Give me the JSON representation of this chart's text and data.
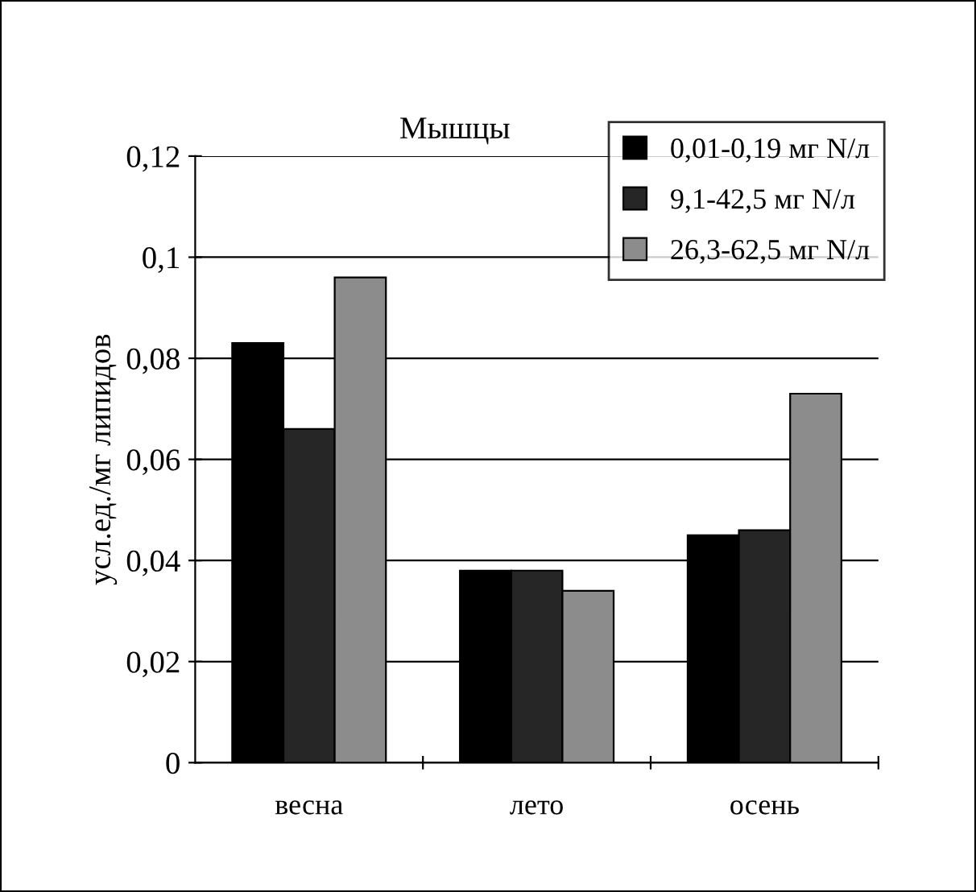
{
  "chart_data": {
    "type": "bar",
    "title": "Мышцы",
    "ylabel": "усл.ед./мг липидов",
    "categories": [
      "весна",
      "лето",
      "осень"
    ],
    "series": [
      {
        "name": "0,01-0,19 мг N/л",
        "color": "#000000",
        "values": [
          0.083,
          0.038,
          0.045
        ]
      },
      {
        "name": "9,1-42,5 мг N/л",
        "color": "#262626",
        "values": [
          0.066,
          0.038,
          0.046
        ]
      },
      {
        "name": "26,3-62,5 мг N/л",
        "color": "#8c8c8c",
        "values": [
          0.096,
          0.034,
          0.073
        ]
      }
    ],
    "ylim": [
      0,
      0.12
    ],
    "yticks": [
      {
        "value": 0,
        "label": "0"
      },
      {
        "value": 0.02,
        "label": "0,02"
      },
      {
        "value": 0.04,
        "label": "0,04"
      },
      {
        "value": 0.06,
        "label": "0,06"
      },
      {
        "value": 0.08,
        "label": "0,08"
      },
      {
        "value": 0.1,
        "label": "0,1"
      },
      {
        "value": 0.12,
        "label": "0,12"
      }
    ],
    "grid": "y",
    "legend": "top right"
  }
}
